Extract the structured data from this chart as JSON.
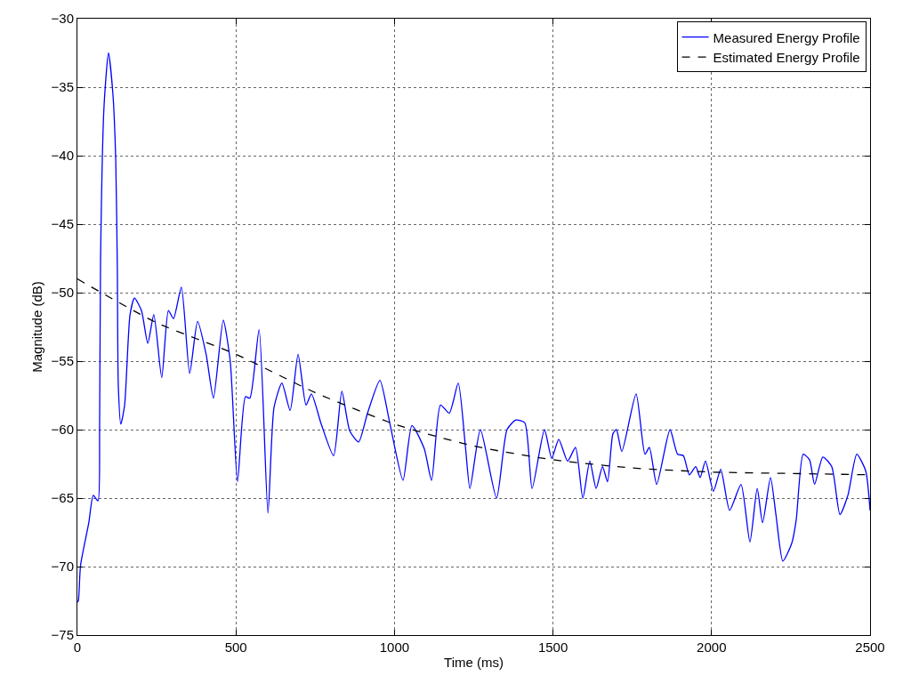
{
  "chart_data": {
    "type": "line",
    "xlabel": "Time (ms)",
    "ylabel": "Magnitude (dB)",
    "xlim": [
      0,
      2500
    ],
    "xticks": [
      0,
      500,
      1000,
      1500,
      2000,
      2500
    ],
    "ylim": [
      -75,
      -30
    ],
    "yticks": [
      -75,
      -70,
      -65,
      -60,
      -55,
      -50,
      -45,
      -40,
      -35,
      -30
    ],
    "grid": true,
    "legend": "top right",
    "marker": "none",
    "series": [
      {
        "name": "Measured Energy Profile",
        "color": "#0000ff",
        "line_style": "solid",
        "x": [
          0,
          3,
          10,
          36,
          50,
          65,
          70,
          73,
          84,
          98,
          112,
          121,
          126,
          129,
          137,
          149,
          166,
          180,
          202,
          222,
          241,
          266,
          287,
          303,
          328,
          354,
          379,
          406,
          429,
          460,
          482,
          505,
          530,
          544,
          573,
          601,
          620,
          645,
          671,
          696,
          721,
          738,
          769,
          808,
          834,
          859,
          887,
          915,
          954,
          985,
          1027,
          1055,
          1094,
          1117,
          1145,
          1173,
          1201,
          1224,
          1238,
          1271,
          1322,
          1355,
          1383,
          1411,
          1434,
          1473,
          1496,
          1518,
          1546,
          1571,
          1594,
          1616,
          1636,
          1656,
          1672,
          1689,
          1700,
          1717,
          1762,
          1790,
          1804,
          1827,
          1869,
          1893,
          1911,
          1930,
          1950,
          1964,
          1981,
          2006,
          2029,
          2057,
          2093,
          2121,
          2144,
          2161,
          2186,
          2203,
          2225,
          2253,
          2267,
          2289,
          2309,
          2325,
          2351,
          2379,
          2405,
          2430,
          2458,
          2486,
          2500
        ],
        "values": [
          -72.6,
          -72.5,
          -69.9,
          -66.8,
          -64.8,
          -65.2,
          -59.9,
          -47.6,
          -36.4,
          -32.5,
          -35.5,
          -40.4,
          -48.4,
          -56.8,
          -59.6,
          -58.2,
          -51.6,
          -50.4,
          -51.3,
          -53.7,
          -51.6,
          -56.2,
          -51.3,
          -51.9,
          -49.6,
          -55.9,
          -52.1,
          -54.5,
          -57.7,
          -52.0,
          -55.0,
          -63.8,
          -57.6,
          -57.7,
          -52.7,
          -66.1,
          -58.4,
          -56.6,
          -58.6,
          -54.5,
          -58.2,
          -57.4,
          -59.6,
          -61.9,
          -57.2,
          -60.1,
          -60.9,
          -58.8,
          -56.4,
          -59.5,
          -63.7,
          -59.7,
          -61.4,
          -63.7,
          -58.2,
          -58.8,
          -56.6,
          -61.3,
          -64.3,
          -60.0,
          -65.0,
          -60.0,
          -59.3,
          -59.5,
          -64.3,
          -60.0,
          -62.1,
          -60.7,
          -62.3,
          -61.3,
          -65.0,
          -62.3,
          -64.3,
          -62.7,
          -63.8,
          -60.3,
          -60.0,
          -61.6,
          -57.4,
          -61.8,
          -61.3,
          -64.0,
          -60.0,
          -61.8,
          -61.9,
          -63.3,
          -62.7,
          -63.5,
          -62.3,
          -64.5,
          -62.9,
          -65.9,
          -64.0,
          -68.2,
          -64.3,
          -66.8,
          -63.5,
          -66.2,
          -69.6,
          -68.3,
          -66.6,
          -61.8,
          -62.2,
          -64.0,
          -62.0,
          -62.7,
          -66.2,
          -64.8,
          -61.8,
          -63.0,
          -65.9
        ]
      },
      {
        "name": "Estimated Energy Profile",
        "color": "#000000",
        "line_style": "dashed",
        "x": [
          0,
          250,
          500,
          750,
          1000,
          1250,
          1500,
          1750,
          2000,
          2250,
          2500
        ],
        "values": [
          -49.0,
          -52.2,
          -54.5,
          -57.3,
          -59.6,
          -61.2,
          -62.2,
          -62.8,
          -63.1,
          -63.2,
          -63.3
        ]
      }
    ]
  }
}
